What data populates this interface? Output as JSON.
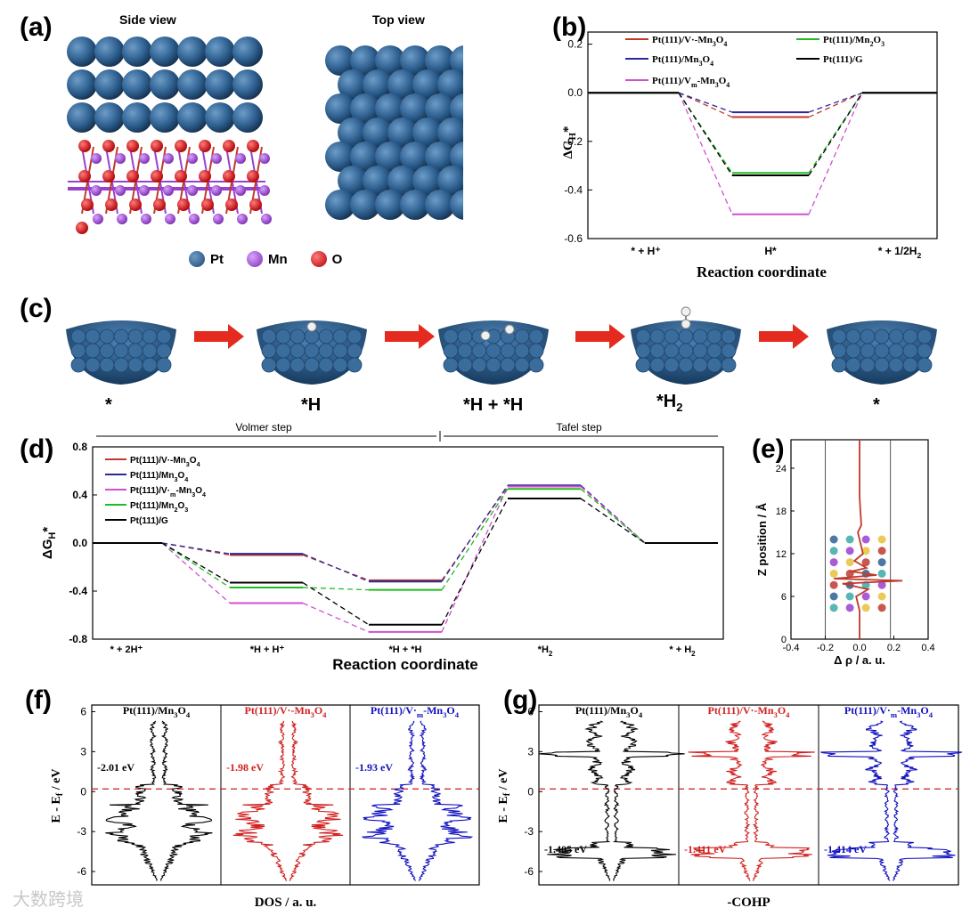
{
  "figure": {
    "panel_labels": [
      "(a)",
      "(b)",
      "(c)",
      "(d)",
      "(e)",
      "(f)",
      "(g)"
    ],
    "watermark": "大数跨境"
  },
  "panel_a": {
    "side_view_title": "Side view",
    "top_view_title": "Top view",
    "legend": [
      {
        "label": "Pt",
        "color": "#2e6090"
      },
      {
        "label": "Mn",
        "color": "#9a3fd0"
      },
      {
        "label": "O",
        "color": "#e01818"
      }
    ]
  },
  "panel_c": {
    "states": [
      "*",
      "*H",
      "*H + *H",
      "*H2",
      "*"
    ]
  },
  "panel_e": {
    "ylabel": "Z position / Å",
    "xlabel": "Δ ρ / a. u."
  },
  "panel_f": {
    "xlabel": "DOS / a. u.",
    "ylabel": "E - Ef / eV",
    "titles": [
      "Pt(111)/Mn3O4",
      "Pt(111)/V·-Mn3O4",
      "Pt(111)/V·m-Mn3O4"
    ],
    "centers": [
      "-2.01 eV",
      "-1.98 eV",
      "-1.93 eV"
    ]
  },
  "panel_g": {
    "xlabel": "-COHP",
    "ylabel": "E - Ef / eV",
    "titles": [
      "Pt(111)/Mn3O4",
      "Pt(111)/V·-Mn3O4",
      "Pt(111)/V·m-Mn3O4"
    ],
    "centers": [
      "-1.405 eV",
      "-1.411 eV",
      "-1.414 eV"
    ]
  },
  "chart_data": [
    {
      "id": "b",
      "type": "line",
      "xlabel": "Reaction coordinate",
      "ylabel": "ΔGH*",
      "ylim": [
        -0.6,
        0.25
      ],
      "categories": [
        "* + H+",
        "H*",
        "* + 1/2H2"
      ],
      "legend_position": "top",
      "series": [
        {
          "name": "Pt(111)/V·-Mn3O4",
          "color": "#c0392b",
          "values": [
            0,
            -0.1,
            0
          ]
        },
        {
          "name": "Pt(111)/Mn3O4",
          "color": "#2a2a9a",
          "values": [
            0,
            -0.08,
            0
          ]
        },
        {
          "name": "Pt(111)/Vm-Mn3O4",
          "color": "#d050d0",
          "values": [
            0,
            -0.5,
            0
          ]
        },
        {
          "name": "Pt(111)/Mn2O3",
          "color": "#22bb22",
          "values": [
            0,
            -0.33,
            0
          ]
        },
        {
          "name": "Pt(111)/G",
          "color": "#000000",
          "values": [
            0,
            -0.34,
            0
          ]
        }
      ]
    },
    {
      "id": "d",
      "type": "line",
      "xlabel": "Reaction coordinate",
      "ylabel": "ΔGH*",
      "ylim": [
        -0.8,
        0.8
      ],
      "yticks": [
        -0.8,
        -0.4,
        0.0,
        0.4,
        0.8
      ],
      "categories": [
        "* + 2H+",
        "*H + H+",
        "*H + *H",
        "*H2",
        "* + H2"
      ],
      "steps": [
        "Volmer step",
        "Tafel step"
      ],
      "legend_position": "top-left",
      "series": [
        {
          "name": "Pt(111)/V·-Mn3O4",
          "color": "#c0392b",
          "values": [
            0,
            -0.1,
            -0.31,
            0.47,
            0
          ]
        },
        {
          "name": "Pt(111)/Mn3O4",
          "color": "#2a2a9a",
          "values": [
            0,
            -0.09,
            -0.32,
            0.48,
            0
          ]
        },
        {
          "name": "Pt(111)/V·m-Mn3O4",
          "color": "#d050d0",
          "values": [
            0,
            -0.5,
            -0.74,
            0.47,
            0
          ]
        },
        {
          "name": "Pt(111)/Mn2O3",
          "color": "#22bb22",
          "values": [
            0,
            -0.37,
            -0.39,
            0.45,
            0
          ]
        },
        {
          "name": "Pt(111)/G",
          "color": "#000000",
          "values": [
            0,
            -0.33,
            -0.68,
            0.37,
            0
          ]
        }
      ]
    },
    {
      "id": "e",
      "type": "line",
      "xlabel": "Δ ρ / a. u.",
      "ylabel": "Z position / Å",
      "xlim": [
        -0.4,
        0.4
      ],
      "ylim": [
        0,
        28
      ],
      "xticks": [
        -0.4,
        -0.2,
        0.0,
        0.2,
        0.4
      ],
      "yticks": [
        0,
        6,
        12,
        18,
        24
      ],
      "series": [
        {
          "name": "",
          "color": "#c0392b",
          "x": [
            0.0,
            0.0,
            0.01,
            -0.01,
            0.0,
            0.02,
            -0.03,
            0.04,
            -0.05,
            0.1,
            -0.15,
            0.25,
            -0.1,
            0.05,
            -0.02,
            0.0,
            0.0
          ],
          "y": [
            28,
            20,
            16,
            15,
            14,
            12,
            11,
            10,
            9.5,
            9,
            8.5,
            8.2,
            7.8,
            7,
            6,
            4,
            0
          ]
        }
      ]
    }
  ]
}
